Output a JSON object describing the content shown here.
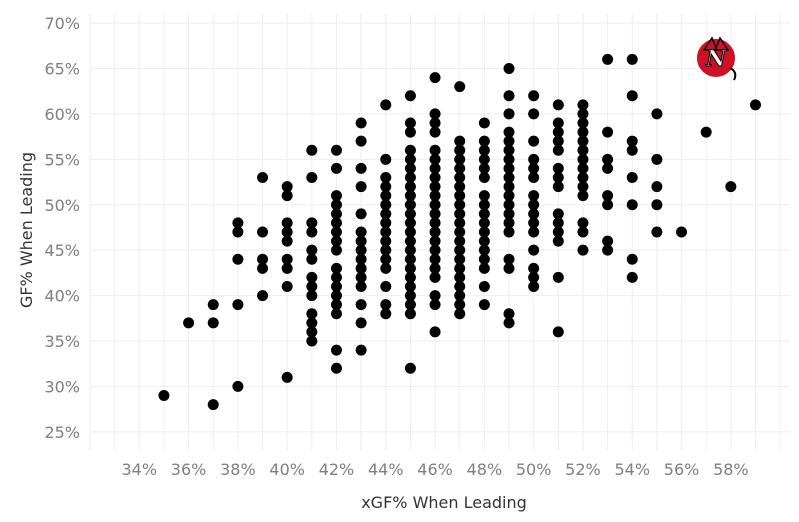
{
  "chart_data": {
    "type": "scatter",
    "xlabel": "xGF% When Leading",
    "ylabel": "GF% When Leading",
    "xlim": [
      32.0,
      60.4
    ],
    "ylim": [
      23.0,
      71.0
    ],
    "xticks": [
      {
        "value": 34,
        "label": "34%"
      },
      {
        "value": 36,
        "label": "36%"
      },
      {
        "value": 38,
        "label": "38%"
      },
      {
        "value": 40,
        "label": "40%"
      },
      {
        "value": 42,
        "label": "42%"
      },
      {
        "value": 44,
        "label": "44%"
      },
      {
        "value": 46,
        "label": "46%"
      },
      {
        "value": 48,
        "label": "48%"
      },
      {
        "value": 50,
        "label": "50%"
      },
      {
        "value": 52,
        "label": "52%"
      },
      {
        "value": 54,
        "label": "54%"
      },
      {
        "value": 56,
        "label": "56%"
      },
      {
        "value": 58,
        "label": "58%"
      }
    ],
    "yticks": [
      {
        "value": 25,
        "label": "25%"
      },
      {
        "value": 30,
        "label": "30%"
      },
      {
        "value": 35,
        "label": "35%"
      },
      {
        "value": 40,
        "label": "40%"
      },
      {
        "value": 45,
        "label": "45%"
      },
      {
        "value": 50,
        "label": "50%"
      },
      {
        "value": 55,
        "label": "55%"
      },
      {
        "value": 60,
        "label": "60%"
      },
      {
        "value": 65,
        "label": "65%"
      },
      {
        "value": 70,
        "label": "70%"
      }
    ],
    "grid": true,
    "marker_color": "#000000",
    "points": [
      [
        35,
        29
      ],
      [
        36,
        37
      ],
      [
        37,
        39
      ],
      [
        37,
        37
      ],
      [
        37,
        28
      ],
      [
        38,
        48
      ],
      [
        38,
        47
      ],
      [
        38,
        44
      ],
      [
        38,
        39
      ],
      [
        38,
        30
      ],
      [
        39,
        53
      ],
      [
        39,
        47
      ],
      [
        39,
        44
      ],
      [
        39,
        43
      ],
      [
        39,
        40
      ],
      [
        40,
        52
      ],
      [
        40,
        51
      ],
      [
        40,
        48
      ],
      [
        40,
        47
      ],
      [
        40,
        46
      ],
      [
        40,
        44
      ],
      [
        40,
        43
      ],
      [
        40,
        41
      ],
      [
        40,
        31
      ],
      [
        41,
        56
      ],
      [
        41,
        53
      ],
      [
        41,
        48
      ],
      [
        41,
        47
      ],
      [
        41,
        45
      ],
      [
        41,
        44
      ],
      [
        41,
        42
      ],
      [
        41,
        41
      ],
      [
        41,
        40
      ],
      [
        41,
        38
      ],
      [
        41,
        37
      ],
      [
        41,
        36
      ],
      [
        41,
        35
      ],
      [
        42,
        56
      ],
      [
        42,
        54
      ],
      [
        42,
        51
      ],
      [
        42,
        50
      ],
      [
        42,
        49
      ],
      [
        42,
        48
      ],
      [
        42,
        47
      ],
      [
        42,
        46
      ],
      [
        42,
        45
      ],
      [
        42,
        43
      ],
      [
        42,
        42
      ],
      [
        42,
        41
      ],
      [
        42,
        40
      ],
      [
        42,
        39
      ],
      [
        42,
        38
      ],
      [
        42,
        34
      ],
      [
        42,
        32
      ],
      [
        43,
        59
      ],
      [
        43,
        57
      ],
      [
        43,
        54
      ],
      [
        43,
        52
      ],
      [
        43,
        49
      ],
      [
        43,
        47
      ],
      [
        43,
        46
      ],
      [
        43,
        45
      ],
      [
        43,
        44
      ],
      [
        43,
        43
      ],
      [
        43,
        42
      ],
      [
        43,
        41
      ],
      [
        43,
        39
      ],
      [
        43,
        37
      ],
      [
        43,
        34
      ],
      [
        44,
        61
      ],
      [
        44,
        55
      ],
      [
        44,
        53
      ],
      [
        44,
        52
      ],
      [
        44,
        51
      ],
      [
        44,
        50
      ],
      [
        44,
        49
      ],
      [
        44,
        48
      ],
      [
        44,
        47
      ],
      [
        44,
        46
      ],
      [
        44,
        45
      ],
      [
        44,
        44
      ],
      [
        44,
        43
      ],
      [
        44,
        41
      ],
      [
        44,
        39
      ],
      [
        44,
        38
      ],
      [
        45,
        62
      ],
      [
        45,
        59
      ],
      [
        45,
        58
      ],
      [
        45,
        56
      ],
      [
        45,
        55
      ],
      [
        45,
        54
      ],
      [
        45,
        53
      ],
      [
        45,
        52
      ],
      [
        45,
        51
      ],
      [
        45,
        50
      ],
      [
        45,
        49
      ],
      [
        45,
        48
      ],
      [
        45,
        47
      ],
      [
        45,
        46
      ],
      [
        45,
        45
      ],
      [
        45,
        44
      ],
      [
        45,
        43
      ],
      [
        45,
        42
      ],
      [
        45,
        41
      ],
      [
        45,
        40
      ],
      [
        45,
        39
      ],
      [
        45,
        38
      ],
      [
        45,
        32
      ],
      [
        46,
        64
      ],
      [
        46,
        60
      ],
      [
        46,
        59
      ],
      [
        46,
        58
      ],
      [
        46,
        56
      ],
      [
        46,
        55
      ],
      [
        46,
        54
      ],
      [
        46,
        53
      ],
      [
        46,
        52
      ],
      [
        46,
        51
      ],
      [
        46,
        50
      ],
      [
        46,
        49
      ],
      [
        46,
        48
      ],
      [
        46,
        47
      ],
      [
        46,
        46
      ],
      [
        46,
        45
      ],
      [
        46,
        44
      ],
      [
        46,
        43
      ],
      [
        46,
        42
      ],
      [
        46,
        40
      ],
      [
        46,
        39
      ],
      [
        46,
        36
      ],
      [
        47,
        63
      ],
      [
        47,
        57
      ],
      [
        47,
        56
      ],
      [
        47,
        55
      ],
      [
        47,
        54
      ],
      [
        47,
        53
      ],
      [
        47,
        52
      ],
      [
        47,
        51
      ],
      [
        47,
        50
      ],
      [
        47,
        49
      ],
      [
        47,
        48
      ],
      [
        47,
        47
      ],
      [
        47,
        46
      ],
      [
        47,
        45
      ],
      [
        47,
        44
      ],
      [
        47,
        43
      ],
      [
        47,
        42
      ],
      [
        47,
        41
      ],
      [
        47,
        40
      ],
      [
        47,
        39
      ],
      [
        47,
        38
      ],
      [
        48,
        59
      ],
      [
        48,
        57
      ],
      [
        48,
        56
      ],
      [
        48,
        55
      ],
      [
        48,
        54
      ],
      [
        48,
        53
      ],
      [
        48,
        51
      ],
      [
        48,
        50
      ],
      [
        48,
        49
      ],
      [
        48,
        48
      ],
      [
        48,
        47
      ],
      [
        48,
        46
      ],
      [
        48,
        45
      ],
      [
        48,
        44
      ],
      [
        48,
        43
      ],
      [
        48,
        41
      ],
      [
        48,
        39
      ],
      [
        49,
        65
      ],
      [
        49,
        62
      ],
      [
        49,
        60
      ],
      [
        49,
        58
      ],
      [
        49,
        57
      ],
      [
        49,
        56
      ],
      [
        49,
        55
      ],
      [
        49,
        54
      ],
      [
        49,
        53
      ],
      [
        49,
        52
      ],
      [
        49,
        51
      ],
      [
        49,
        50
      ],
      [
        49,
        49
      ],
      [
        49,
        48
      ],
      [
        49,
        47
      ],
      [
        49,
        44
      ],
      [
        49,
        43
      ],
      [
        49,
        38
      ],
      [
        49,
        37
      ],
      [
        50,
        62
      ],
      [
        50,
        60
      ],
      [
        50,
        57
      ],
      [
        50,
        55
      ],
      [
        50,
        54
      ],
      [
        50,
        53
      ],
      [
        50,
        51
      ],
      [
        50,
        50
      ],
      [
        50,
        49
      ],
      [
        50,
        48
      ],
      [
        50,
        47
      ],
      [
        50,
        45
      ],
      [
        50,
        43
      ],
      [
        50,
        42
      ],
      [
        50,
        41
      ],
      [
        51,
        61
      ],
      [
        51,
        59
      ],
      [
        51,
        58
      ],
      [
        51,
        57
      ],
      [
        51,
        56
      ],
      [
        51,
        54
      ],
      [
        51,
        53
      ],
      [
        51,
        52
      ],
      [
        51,
        49
      ],
      [
        51,
        48
      ],
      [
        51,
        47
      ],
      [
        51,
        46
      ],
      [
        51,
        42
      ],
      [
        51,
        36
      ],
      [
        52,
        61
      ],
      [
        52,
        60
      ],
      [
        52,
        59
      ],
      [
        52,
        58
      ],
      [
        52,
        57
      ],
      [
        52,
        56
      ],
      [
        52,
        55
      ],
      [
        52,
        54
      ],
      [
        52,
        53
      ],
      [
        52,
        52
      ],
      [
        52,
        51
      ],
      [
        52,
        48
      ],
      [
        52,
        47
      ],
      [
        52,
        45
      ],
      [
        53,
        66
      ],
      [
        53,
        58
      ],
      [
        53,
        55
      ],
      [
        53,
        54
      ],
      [
        53,
        51
      ],
      [
        53,
        50
      ],
      [
        53,
        46
      ],
      [
        53,
        45
      ],
      [
        54,
        66
      ],
      [
        54,
        62
      ],
      [
        54,
        57
      ],
      [
        54,
        56
      ],
      [
        54,
        53
      ],
      [
        54,
        50
      ],
      [
        54,
        44
      ],
      [
        54,
        42
      ],
      [
        55,
        60
      ],
      [
        55,
        55
      ],
      [
        55,
        52
      ],
      [
        55,
        50
      ],
      [
        55,
        47
      ],
      [
        56,
        47
      ],
      [
        57,
        58
      ],
      [
        58,
        52
      ],
      [
        59,
        61
      ]
    ]
  },
  "logo": {
    "icon": "new-jersey-devils-logo-icon",
    "color": "#ce1126"
  }
}
